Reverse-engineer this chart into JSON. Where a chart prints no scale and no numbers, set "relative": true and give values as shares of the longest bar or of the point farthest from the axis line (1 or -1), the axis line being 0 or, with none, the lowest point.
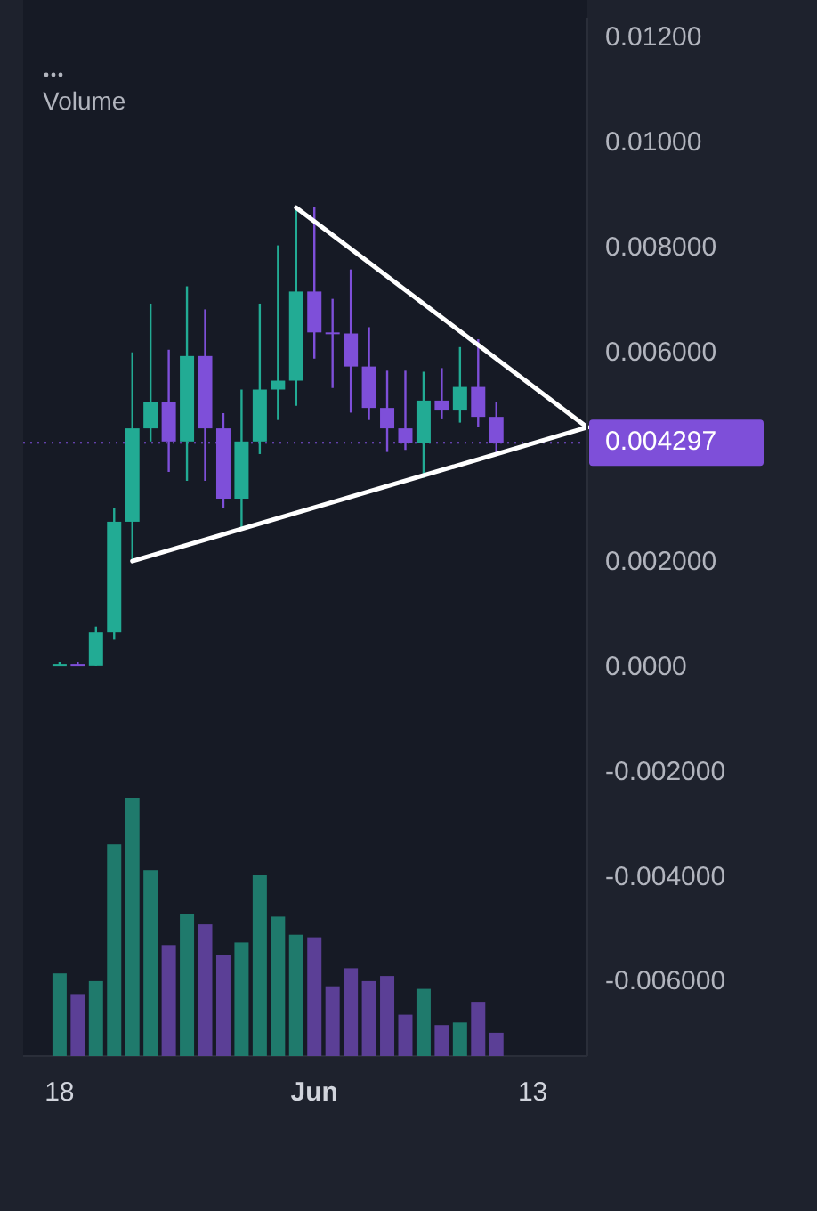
{
  "chart_data": [
    {
      "type": "candlestick",
      "x": [
        "--05-18",
        "--05-19",
        "--05-20",
        "--05-21",
        "--05-22",
        "--05-23",
        "--05-24",
        "--05-25",
        "--05-26",
        "--05-27",
        "--05-28",
        "--05-29",
        "--05-30",
        "--05-31",
        "--06-01",
        "--06-02",
        "--06-03",
        "--06-04",
        "--06-05",
        "--06-06",
        "--06-07",
        "--06-08",
        "--06-09",
        "--06-10",
        "--06-11"
      ],
      "ohlc": [
        [
          5e-05,
          0.00012,
          5e-05,
          7e-05
        ],
        [
          7e-05,
          0.00012,
          5e-05,
          5e-05
        ],
        [
          4e-05,
          0.00079,
          4e-05,
          0.00068
        ],
        [
          0.00068,
          0.00306,
          0.00054,
          0.00279
        ],
        [
          0.00279,
          0.00602,
          0.00204,
          0.00457
        ],
        [
          0.00457,
          0.00695,
          0.00432,
          0.00507
        ],
        [
          0.00507,
          0.00607,
          0.00374,
          0.00432
        ],
        [
          0.00432,
          0.00728,
          0.00357,
          0.00595
        ],
        [
          0.00595,
          0.00684,
          0.00357,
          0.00457
        ],
        [
          0.00457,
          0.00486,
          0.00306,
          0.00323
        ],
        [
          0.00323,
          0.00531,
          0.00266,
          0.00432
        ],
        [
          0.00432,
          0.00695,
          0.00408,
          0.00531
        ],
        [
          0.00531,
          0.00806,
          0.00473,
          0.00548
        ],
        [
          0.00548,
          0.00874,
          0.005,
          0.00718
        ],
        [
          0.00718,
          0.00879,
          0.0059,
          0.0064
        ],
        [
          0.0064,
          0.00704,
          0.00534,
          0.00638
        ],
        [
          0.00638,
          0.0076,
          0.00487,
          0.00575
        ],
        [
          0.00575,
          0.0065,
          0.00473,
          0.00496
        ],
        [
          0.00496,
          0.00567,
          0.00412,
          0.00457
        ],
        [
          0.00457,
          0.00567,
          0.00416,
          0.00429
        ],
        [
          0.00429,
          0.00565,
          0.00363,
          0.0051
        ],
        [
          0.0051,
          0.00572,
          0.00476,
          0.00491
        ],
        [
          0.00491,
          0.00612,
          0.00468,
          0.00536
        ],
        [
          0.00536,
          0.00627,
          0.00459,
          0.00479
        ],
        [
          0.00479,
          0.00508,
          0.00406,
          0.0043
        ]
      ],
      "colors": [
        "#22ab94",
        "#7e4fd9",
        "#22ab94",
        "#22ab94",
        "#22ab94",
        "#22ab94",
        "#7e4fd9",
        "#22ab94",
        "#7e4fd9",
        "#7e4fd9",
        "#22ab94",
        "#22ab94",
        "#22ab94",
        "#22ab94",
        "#7e4fd9",
        "#7e4fd9",
        "#7e4fd9",
        "#7e4fd9",
        "#7e4fd9",
        "#7e4fd9",
        "#22ab94",
        "#7e4fd9",
        "#22ab94",
        "#7e4fd9",
        "#7e4fd9"
      ],
      "series": [
        {
          "type": "line",
          "color": "#ffffff",
          "x": [
            "--05-31",
            "--06-16"
          ],
          "values": [
            0.00878,
            0.00459
          ]
        },
        {
          "type": "line",
          "color": "#ffffff",
          "x": [
            "--05-22",
            "--06-16"
          ],
          "values": [
            0.00204,
            0.00459
          ]
        }
      ],
      "xlim": [
        "--05-16",
        "--06-16"
      ],
      "xticks": [
        {
          "value": "--05-18",
          "label": "18"
        },
        {
          "value": "--06-01",
          "label": "Jun"
        },
        {
          "value": "--06-13",
          "label": "13"
        }
      ],
      "ylim": [
        -0.0074,
        0.0124
      ],
      "yticks": [
        {
          "value": 0.012,
          "label": "0.01200"
        },
        {
          "value": 0.01,
          "label": "0.01000"
        },
        {
          "value": 0.008,
          "label": "0.008000"
        },
        {
          "value": 0.006,
          "label": "0.006000"
        },
        {
          "value": 0.002,
          "label": "0.002000"
        },
        {
          "value": 0,
          "label": "0.0000"
        },
        {
          "value": -0.002,
          "label": "-0.002000"
        },
        {
          "value": -0.004,
          "label": "-0.004000"
        },
        {
          "value": -0.006,
          "label": "-0.006000"
        }
      ],
      "ref_lines": [
        {
          "axis": "y",
          "value": 0.004297,
          "label": "0.004297",
          "color": "#7e4fd9",
          "line_style": "dotted"
        }
      ]
    },
    {
      "type": "bar",
      "relative": true,
      "legend": "top left",
      "x": [
        "--05-18",
        "--05-19",
        "--05-20",
        "--05-21",
        "--05-22",
        "--05-23",
        "--05-24",
        "--05-25",
        "--05-26",
        "--05-27",
        "--05-28",
        "--05-29",
        "--05-30",
        "--05-31",
        "--06-01",
        "--06-02",
        "--06-03",
        "--06-04",
        "--06-05",
        "--06-06",
        "--06-07",
        "--06-08",
        "--06-09",
        "--06-10",
        "--06-11"
      ],
      "xlim": [
        "--05-16",
        "--06-16"
      ],
      "series": [
        {
          "name": "Volume",
          "values": [
            0.32,
            0.24,
            0.29,
            0.82,
            1,
            0.72,
            0.43,
            0.55,
            0.51,
            0.39,
            0.44,
            0.7,
            0.54,
            0.47,
            0.46,
            0.27,
            0.34,
            0.29,
            0.31,
            0.16,
            0.26,
            0.12,
            0.13,
            0.21,
            0.09
          ],
          "colors": [
            "#1f7a6c",
            "#5b3f96",
            "#1f7a6c",
            "#1f7a6c",
            "#1f7a6c",
            "#1f7a6c",
            "#5b3f96",
            "#1f7a6c",
            "#5b3f96",
            "#5b3f96",
            "#1f7a6c",
            "#1f7a6c",
            "#1f7a6c",
            "#1f7a6c",
            "#5b3f96",
            "#5b3f96",
            "#5b3f96",
            "#5b3f96",
            "#5b3f96",
            "#5b3f96",
            "#1f7a6c",
            "#5b3f96",
            "#1f7a6c",
            "#5b3f96",
            "#5b3f96"
          ]
        }
      ]
    }
  ]
}
